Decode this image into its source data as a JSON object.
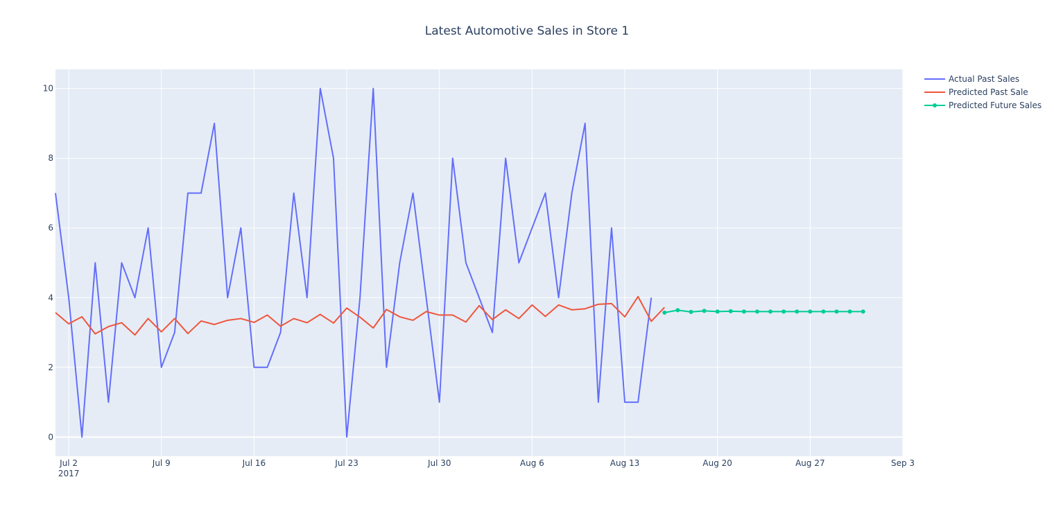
{
  "chart_data": {
    "type": "line",
    "title": "Latest Automotive Sales in Store 1",
    "xlabel": "",
    "ylabel": "",
    "x_range": [
      "2017-07-01",
      "2017-09-03"
    ],
    "ylim": [
      -0.55,
      10.55
    ],
    "y_ticks": [
      0,
      2,
      4,
      6,
      8,
      10
    ],
    "x_ticks": [
      {
        "date": "2017-07-02",
        "label": "Jul 2",
        "sublabel": "2017"
      },
      {
        "date": "2017-07-09",
        "label": "Jul 9"
      },
      {
        "date": "2017-07-16",
        "label": "Jul 16"
      },
      {
        "date": "2017-07-23",
        "label": "Jul 23"
      },
      {
        "date": "2017-07-30",
        "label": "Jul 30"
      },
      {
        "date": "2017-08-06",
        "label": "Aug 6"
      },
      {
        "date": "2017-08-13",
        "label": "Aug 13"
      },
      {
        "date": "2017-08-20",
        "label": "Aug 20"
      },
      {
        "date": "2017-08-27",
        "label": "Aug 27"
      },
      {
        "date": "2017-09-03",
        "label": "Sep 3"
      }
    ],
    "grid": true,
    "legend_position": "top-right",
    "series": [
      {
        "name": "Actual Past Sales",
        "color": "#636efa",
        "mode": "lines",
        "start_date": "2017-07-01",
        "values": [
          7,
          4,
          0,
          5,
          1,
          5,
          4,
          6,
          2,
          3,
          7,
          7,
          9,
          4,
          6,
          2,
          2,
          3,
          7,
          4,
          10,
          8,
          0,
          4,
          10,
          2,
          5,
          7,
          4,
          1,
          8,
          5,
          4,
          3,
          8,
          5,
          6,
          7,
          4,
          7,
          9,
          1,
          6,
          1,
          1,
          4
        ]
      },
      {
        "name": "Predicted Past Sale",
        "color": "#ef553b",
        "mode": "lines",
        "start_date": "2017-07-01",
        "values": [
          3.57,
          3.25,
          3.45,
          2.96,
          3.17,
          3.28,
          2.93,
          3.4,
          3.02,
          3.4,
          2.97,
          3.33,
          3.23,
          3.35,
          3.4,
          3.29,
          3.5,
          3.18,
          3.4,
          3.28,
          3.52,
          3.27,
          3.7,
          3.44,
          3.13,
          3.66,
          3.45,
          3.35,
          3.6,
          3.5,
          3.5,
          3.3,
          3.77,
          3.37,
          3.65,
          3.4,
          3.79,
          3.46,
          3.79,
          3.65,
          3.68,
          3.81,
          3.83,
          3.45,
          4.03,
          3.32,
          3.72
        ]
      },
      {
        "name": "Predicted Future Sales",
        "color": "#00cc96",
        "mode": "lines+markers",
        "start_date": "2017-08-16",
        "values": [
          3.57,
          3.64,
          3.59,
          3.62,
          3.6,
          3.61,
          3.6,
          3.6,
          3.6,
          3.6,
          3.6,
          3.6,
          3.6,
          3.6,
          3.6,
          3.6
        ]
      }
    ]
  }
}
